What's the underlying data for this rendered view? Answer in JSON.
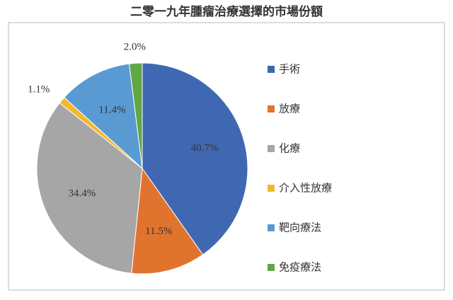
{
  "chart_data": {
    "type": "pie",
    "title": "二零一九年腫瘤治療選擇的市場份額",
    "categories": [
      "手術",
      "放療",
      "化療",
      "介入性放療",
      "靶向療法",
      "免疫療法"
    ],
    "values": [
      40.7,
      11.5,
      34.4,
      1.1,
      11.4,
      2.0
    ],
    "value_labels": [
      "40.7%",
      "11.5%",
      "34.4%",
      "1.1%",
      "11.4%",
      "2.0%"
    ],
    "colors": [
      "#4068b2",
      "#e0742f",
      "#a6a6a6",
      "#f2b92f",
      "#5a9ad2",
      "#62a745"
    ],
    "legend": "right"
  }
}
